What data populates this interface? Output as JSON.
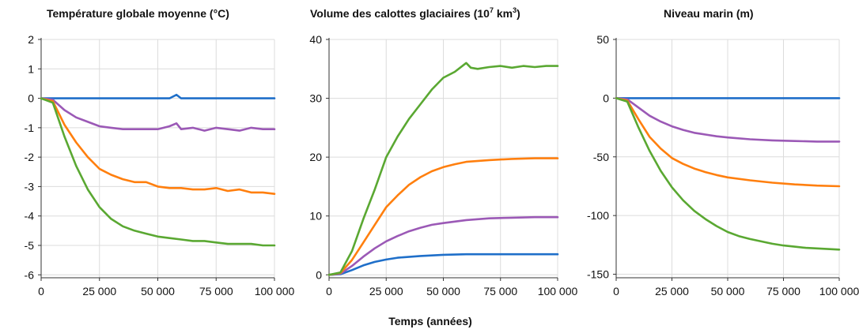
{
  "figure": {
    "xlabel": "Temps (années)"
  },
  "chart_data": [
    {
      "type": "line",
      "title": "Température globale moyenne (°C)",
      "xlabel": "",
      "ylabel": "",
      "xlim": [
        0,
        100000
      ],
      "ylim": [
        -6.1,
        2
      ],
      "x_ticks": [
        0,
        25000,
        50000,
        75000,
        100000
      ],
      "x_tick_labels": [
        "0",
        "25 000",
        "50 000",
        "75 000",
        "100 000"
      ],
      "y_ticks": [
        2,
        1,
        0,
        -1,
        -2,
        -3,
        -4,
        -5,
        -6
      ],
      "y_tick_labels": [
        "2",
        "1",
        "0",
        "-1",
        "-2",
        "-3",
        "-4",
        "-5",
        "-6"
      ],
      "grid": true,
      "series": [
        {
          "color": "#1f6fc9",
          "x": [
            0,
            5000,
            10000,
            20000,
            30000,
            40000,
            50000,
            55000,
            58000,
            60000,
            62000,
            70000,
            80000,
            90000,
            100000
          ],
          "y": [
            0,
            0,
            0,
            0,
            0,
            0,
            0,
            0,
            0.12,
            0.0,
            0,
            0,
            0,
            0,
            0
          ]
        },
        {
          "color": "#9b59b6",
          "x": [
            0,
            5000,
            10000,
            15000,
            20000,
            25000,
            30000,
            35000,
            40000,
            45000,
            50000,
            55000,
            58000,
            60000,
            65000,
            70000,
            75000,
            80000,
            85000,
            90000,
            95000,
            100000
          ],
          "y": [
            0,
            -0.05,
            -0.4,
            -0.65,
            -0.8,
            -0.95,
            -1.0,
            -1.05,
            -1.05,
            -1.05,
            -1.05,
            -0.95,
            -0.85,
            -1.05,
            -1.0,
            -1.1,
            -1.0,
            -1.05,
            -1.1,
            -1.0,
            -1.05,
            -1.05
          ]
        },
        {
          "color": "#ff7f0e",
          "x": [
            0,
            5000,
            10000,
            15000,
            20000,
            25000,
            30000,
            35000,
            40000,
            45000,
            50000,
            55000,
            60000,
            65000,
            70000,
            75000,
            80000,
            85000,
            90000,
            95000,
            100000
          ],
          "y": [
            0,
            -0.1,
            -0.9,
            -1.5,
            -2.0,
            -2.4,
            -2.6,
            -2.75,
            -2.85,
            -2.85,
            -3.0,
            -3.05,
            -3.05,
            -3.1,
            -3.1,
            -3.05,
            -3.15,
            -3.1,
            -3.2,
            -3.2,
            -3.25
          ]
        },
        {
          "color": "#5aa832",
          "x": [
            0,
            5000,
            10000,
            15000,
            20000,
            25000,
            30000,
            35000,
            40000,
            45000,
            50000,
            55000,
            60000,
            65000,
            70000,
            75000,
            80000,
            85000,
            90000,
            95000,
            100000
          ],
          "y": [
            0,
            -0.15,
            -1.3,
            -2.3,
            -3.1,
            -3.7,
            -4.1,
            -4.35,
            -4.5,
            -4.6,
            -4.7,
            -4.75,
            -4.8,
            -4.85,
            -4.85,
            -4.9,
            -4.95,
            -4.95,
            -4.95,
            -5.0,
            -5.0
          ]
        }
      ]
    },
    {
      "type": "line",
      "title": "Volume des calottes glaciaires (10",
      "title_exp": "7",
      "title_tail": " km",
      "title_exp2": "3",
      "title_end": ")",
      "xlabel": "",
      "ylabel": "",
      "xlim": [
        0,
        100000
      ],
      "ylim": [
        -0.5,
        40
      ],
      "x_ticks": [
        0,
        25000,
        50000,
        75000,
        100000
      ],
      "x_tick_labels": [
        "0",
        "25 000",
        "50 000",
        "75 000",
        "100 000"
      ],
      "y_ticks": [
        40,
        30,
        20,
        10,
        0
      ],
      "y_tick_labels": [
        "40",
        "30",
        "20",
        "10",
        "0"
      ],
      "grid": true,
      "series": [
        {
          "color": "#1f6fc9",
          "x": [
            0,
            5000,
            10000,
            15000,
            20000,
            25000,
            30000,
            40000,
            50000,
            60000,
            70000,
            80000,
            90000,
            100000
          ],
          "y": [
            0,
            0.1,
            0.8,
            1.6,
            2.2,
            2.6,
            2.9,
            3.2,
            3.4,
            3.5,
            3.5,
            3.5,
            3.5,
            3.5
          ]
        },
        {
          "color": "#9b59b6",
          "x": [
            0,
            5000,
            10000,
            15000,
            20000,
            25000,
            30000,
            35000,
            40000,
            45000,
            50000,
            60000,
            70000,
            80000,
            90000,
            100000
          ],
          "y": [
            0,
            0.2,
            1.5,
            3.1,
            4.5,
            5.7,
            6.6,
            7.4,
            8.0,
            8.5,
            8.8,
            9.3,
            9.6,
            9.7,
            9.8,
            9.8
          ]
        },
        {
          "color": "#ff7f0e",
          "x": [
            0,
            5000,
            10000,
            15000,
            20000,
            25000,
            30000,
            35000,
            40000,
            45000,
            50000,
            55000,
            60000,
            70000,
            80000,
            90000,
            100000
          ],
          "y": [
            0,
            0.3,
            2.5,
            5.5,
            8.5,
            11.5,
            13.5,
            15.3,
            16.6,
            17.6,
            18.3,
            18.8,
            19.2,
            19.5,
            19.7,
            19.8,
            19.8
          ]
        },
        {
          "color": "#5aa832",
          "x": [
            0,
            5000,
            10000,
            15000,
            20000,
            25000,
            30000,
            35000,
            40000,
            45000,
            50000,
            55000,
            60000,
            62000,
            65000,
            70000,
            75000,
            80000,
            85000,
            90000,
            95000,
            100000
          ],
          "y": [
            0,
            0.4,
            4.0,
            9.5,
            14.5,
            20.0,
            23.5,
            26.5,
            29.0,
            31.5,
            33.5,
            34.5,
            36.0,
            35.2,
            35.0,
            35.3,
            35.5,
            35.2,
            35.5,
            35.3,
            35.5,
            35.5
          ]
        }
      ]
    },
    {
      "type": "line",
      "title": "Niveau marin (m)",
      "xlabel": "",
      "ylabel": "",
      "xlim": [
        0,
        100000
      ],
      "ylim": [
        -153,
        50
      ],
      "x_ticks": [
        0,
        25000,
        50000,
        75000,
        100000
      ],
      "x_tick_labels": [
        "0",
        "25 000",
        "50 000",
        "75 000",
        "100 000"
      ],
      "y_ticks": [
        50,
        0,
        -50,
        -100,
        -150
      ],
      "y_tick_labels": [
        "50",
        "0",
        "-50",
        "-100",
        "-150"
      ],
      "grid": true,
      "series": [
        {
          "color": "#1f6fc9",
          "x": [
            0,
            10000,
            20000,
            30000,
            40000,
            50000,
            60000,
            70000,
            80000,
            90000,
            100000
          ],
          "y": [
            0,
            0,
            0,
            0,
            0,
            0,
            0,
            0,
            0,
            0,
            0
          ]
        },
        {
          "color": "#9b59b6",
          "x": [
            0,
            5000,
            10000,
            15000,
            20000,
            25000,
            30000,
            35000,
            40000,
            45000,
            50000,
            60000,
            70000,
            80000,
            90000,
            100000
          ],
          "y": [
            0,
            -1,
            -8,
            -15,
            -20,
            -24,
            -27,
            -29.5,
            -31,
            -32.5,
            -33.5,
            -35,
            -36,
            -36.5,
            -37,
            -37
          ]
        },
        {
          "color": "#ff7f0e",
          "x": [
            0,
            5000,
            10000,
            15000,
            20000,
            25000,
            30000,
            35000,
            40000,
            45000,
            50000,
            60000,
            70000,
            80000,
            90000,
            100000
          ],
          "y": [
            0,
            -2,
            -18,
            -33,
            -43,
            -51,
            -56,
            -60,
            -63,
            -65.5,
            -67.5,
            -70,
            -72,
            -73.5,
            -74.5,
            -75
          ]
        },
        {
          "color": "#5aa832",
          "x": [
            0,
            5000,
            10000,
            15000,
            20000,
            25000,
            30000,
            35000,
            40000,
            45000,
            50000,
            55000,
            60000,
            65000,
            70000,
            75000,
            80000,
            85000,
            90000,
            95000,
            100000
          ],
          "y": [
            0,
            -3,
            -25,
            -45,
            -62,
            -76,
            -87,
            -96,
            -103,
            -109,
            -114,
            -117.5,
            -120,
            -122,
            -124,
            -125.5,
            -126.5,
            -127.5,
            -128,
            -128.5,
            -129
          ]
        }
      ]
    }
  ]
}
